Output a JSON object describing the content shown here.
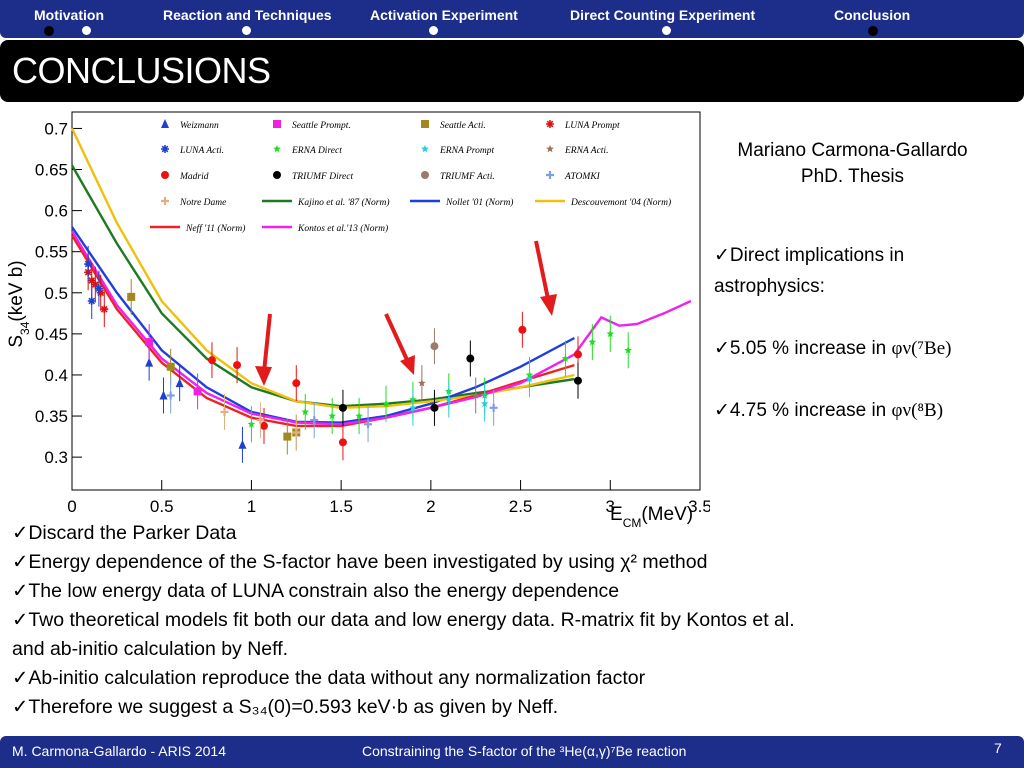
{
  "nav": {
    "items": [
      "Motivation",
      "Reaction and Techniques",
      "Activation Experiment",
      "Direct Counting Experiment",
      "Conclusion"
    ]
  },
  "title": "CONCLUSIONS",
  "author": {
    "name": "Mariano Carmona-Gallardo",
    "thesis": "PhD. Thesis"
  },
  "side_bullets": {
    "b1": "✓Direct implications in astrophysics:",
    "b2_prefix": "✓5.05 % increase in ",
    "b2_symbol": "φν(⁷Be)",
    "b3_prefix": "✓4.75 % increase in ",
    "b3_symbol": "φν(⁸B)"
  },
  "bullets": {
    "b1": "✓Discard the Parker Data",
    "b2": "✓Energy dependence of the S-factor have been investigated by using  χ² method",
    "b3": "✓The low energy data of LUNA constrain also the energy dependence",
    "b4": "✓Two theoretical models  fit both our data and low energy data. R-matrix fit by Kontos et al. and ab-initio calculation by Neff.",
    "b5": "✓Ab-initio calculation reproduce the data without any normalization factor",
    "b6": "✓Therefore we suggest a S₃₄(0)=0.593 keV·b as given by Neff."
  },
  "footer": {
    "left": "M. Carmona-Gallardo - ARIS 2014",
    "center": "Constraining the S-factor of the ³He(α,γ)⁷Be  reaction",
    "page": "7"
  },
  "chart_data": {
    "type": "scatter",
    "xlabel": "E_CM(MeV)",
    "ylabel": "S_34(keV b)",
    "xlim": [
      0,
      3.5
    ],
    "ylim": [
      0.26,
      0.72
    ],
    "xticks": [
      "0",
      "0.5",
      "1",
      "1.5",
      "2",
      "2.5",
      "3",
      "3.5"
    ],
    "yticks": [
      "0.3",
      "0.35",
      "0.4",
      "0.45",
      "0.5",
      "0.55",
      "0.6",
      "0.65",
      "0.7"
    ],
    "legend_placement": "top",
    "series": [
      {
        "name": "Weizmann",
        "marker": "triangle",
        "color": "#1f3fcf",
        "points": [
          [
            0.43,
            0.415
          ],
          [
            0.51,
            0.375
          ],
          [
            0.6,
            0.39
          ],
          [
            0.95,
            0.315
          ]
        ]
      },
      {
        "name": "Seattle Prompt.",
        "marker": "square",
        "color": "#ee22dd",
        "points": [
          [
            0.43,
            0.44
          ],
          [
            0.7,
            0.38
          ]
        ]
      },
      {
        "name": "Seattle Acti.",
        "marker": "square",
        "color": "#a08a20",
        "points": [
          [
            0.33,
            0.495
          ],
          [
            0.55,
            0.41
          ],
          [
            1.2,
            0.325
          ],
          [
            1.25,
            0.33
          ]
        ]
      },
      {
        "name": "LUNA Prompt",
        "marker": "asterisk",
        "color": "#dd1111",
        "points": [
          [
            0.09,
            0.525
          ],
          [
            0.11,
            0.515
          ],
          [
            0.13,
            0.51
          ],
          [
            0.16,
            0.5
          ],
          [
            0.18,
            0.48
          ]
        ]
      },
      {
        "name": "LUNA Acti.",
        "marker": "asterisk",
        "color": "#1f3fcf",
        "points": [
          [
            0.09,
            0.535
          ],
          [
            0.11,
            0.49
          ],
          [
            0.15,
            0.505
          ]
        ]
      },
      {
        "name": "ERNA Direct",
        "marker": "star",
        "color": "#22dd22",
        "points": [
          [
            1.0,
            0.34
          ],
          [
            1.3,
            0.355
          ],
          [
            1.45,
            0.35
          ],
          [
            1.6,
            0.35
          ],
          [
            1.75,
            0.365
          ],
          [
            1.9,
            0.37
          ],
          [
            2.1,
            0.38
          ],
          [
            2.3,
            0.375
          ],
          [
            2.55,
            0.4
          ],
          [
            2.75,
            0.42
          ],
          [
            2.9,
            0.44
          ],
          [
            3.0,
            0.45
          ],
          [
            3.1,
            0.43
          ]
        ]
      },
      {
        "name": "ERNA Prompt",
        "marker": "star",
        "color": "#22d0e0",
        "points": [
          [
            1.9,
            0.36
          ],
          [
            2.1,
            0.37
          ],
          [
            2.3,
            0.365
          ],
          [
            2.55,
            0.395
          ]
        ]
      },
      {
        "name": "ERNA Acti.",
        "marker": "star",
        "color": "#a0705a",
        "points": [
          [
            1.95,
            0.39
          ],
          [
            2.25,
            0.375
          ]
        ]
      },
      {
        "name": "Madrid",
        "marker": "circle",
        "color": "#ee1111",
        "points": [
          [
            0.78,
            0.418
          ],
          [
            0.92,
            0.412
          ],
          [
            1.07,
            0.338
          ],
          [
            1.25,
            0.39
          ],
          [
            1.51,
            0.318
          ],
          [
            2.51,
            0.455
          ],
          [
            2.82,
            0.425
          ]
        ]
      },
      {
        "name": "TRIUMF Direct",
        "marker": "circle",
        "color": "#000000",
        "points": [
          [
            1.51,
            0.36
          ],
          [
            2.02,
            0.36
          ],
          [
            2.22,
            0.42
          ],
          [
            2.82,
            0.393
          ]
        ]
      },
      {
        "name": "TRIUMF Acti.",
        "marker": "circle",
        "color": "#9c7a6c",
        "points": [
          [
            2.02,
            0.435
          ]
        ]
      },
      {
        "name": "ATOMKI",
        "marker": "plus",
        "color": "#7fa0e0",
        "points": [
          [
            0.55,
            0.375
          ],
          [
            1.35,
            0.345
          ],
          [
            1.65,
            0.34
          ],
          [
            2.35,
            0.36
          ]
        ]
      },
      {
        "name": "Notre Dame",
        "marker": "plus",
        "color": "#e0b080",
        "points": [
          [
            0.85,
            0.355
          ],
          [
            1.05,
            0.345
          ],
          [
            1.25,
            0.33
          ]
        ]
      }
    ],
    "curves": [
      {
        "name": "Kajino et al. '87 (Norm)",
        "color": "#1e7a1e",
        "x": [
          0.0,
          0.25,
          0.5,
          0.75,
          1.0,
          1.25,
          1.5,
          1.75,
          2.0,
          2.25,
          2.5,
          2.8
        ],
        "y": [
          0.655,
          0.56,
          0.475,
          0.42,
          0.385,
          0.368,
          0.362,
          0.365,
          0.37,
          0.378,
          0.385,
          0.395
        ]
      },
      {
        "name": "Nollet '01 (Norm)",
        "color": "#1f3fdd",
        "x": [
          0.0,
          0.25,
          0.5,
          0.75,
          1.0,
          1.25,
          1.5,
          1.75,
          2.0,
          2.25,
          2.5,
          2.8
        ],
        "y": [
          0.58,
          0.5,
          0.43,
          0.385,
          0.355,
          0.343,
          0.342,
          0.35,
          0.365,
          0.385,
          0.41,
          0.445
        ]
      },
      {
        "name": "Descouvemont '04 (Norm)",
        "color": "#f0c010",
        "x": [
          0.0,
          0.25,
          0.5,
          0.75,
          1.0,
          1.25,
          1.5,
          1.75,
          2.0,
          2.25,
          2.5,
          2.8
        ],
        "y": [
          0.7,
          0.585,
          0.49,
          0.43,
          0.39,
          0.368,
          0.36,
          0.362,
          0.368,
          0.375,
          0.385,
          0.4
        ]
      },
      {
        "name": "Neff '11 (Norm)",
        "color": "#ee2222",
        "x": [
          0.0,
          0.25,
          0.5,
          0.75,
          1.0,
          1.25,
          1.5,
          1.75,
          2.0,
          2.25,
          2.5,
          2.8
        ],
        "y": [
          0.57,
          0.48,
          0.415,
          0.372,
          0.348,
          0.338,
          0.338,
          0.348,
          0.36,
          0.375,
          0.392,
          0.412
        ]
      },
      {
        "name": "Kontos et al.'13 (Norm)",
        "color": "#ee22ee",
        "x": [
          0.0,
          0.25,
          0.5,
          0.75,
          1.0,
          1.25,
          1.5,
          1.75,
          2.0,
          2.25,
          2.5,
          2.8,
          2.95,
          3.05,
          3.15,
          3.3,
          3.45
        ],
        "y": [
          0.575,
          0.485,
          0.42,
          0.378,
          0.353,
          0.342,
          0.34,
          0.348,
          0.36,
          0.373,
          0.39,
          0.425,
          0.47,
          0.46,
          0.462,
          0.475,
          0.49
        ]
      }
    ],
    "annotations": [
      "red arrows pointing to data near E=1.1, 1.9 and 2.75 MeV"
    ]
  }
}
